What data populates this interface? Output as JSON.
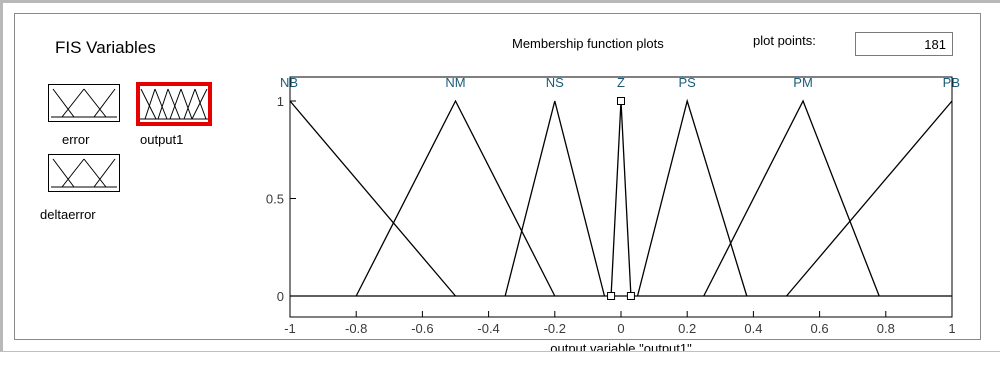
{
  "fis_variables": {
    "title": "FIS Variables",
    "inputs": [
      {
        "name": "error"
      },
      {
        "name": "deltaerror"
      }
    ],
    "outputs": [
      {
        "name": "output1",
        "selected": true
      }
    ],
    "selected_color": "#e60000"
  },
  "plot_panel": {
    "title": "Membership function plots",
    "plot_points_label": "plot points:",
    "plot_points_value": "181"
  },
  "chart_data": {
    "type": "line",
    "xlabel": "output variable \"output1\"",
    "xlim": [
      -1,
      1
    ],
    "ylim": [
      0,
      1
    ],
    "xticks": [
      "-1",
      "-0.8",
      "-0.6",
      "-0.4",
      "-0.2",
      "0",
      "0.2",
      "0.4",
      "0.6",
      "0.8",
      "1"
    ],
    "yticks": [
      "0",
      "0.5",
      "1"
    ],
    "series": [
      {
        "name": "NB",
        "x": [
          -1,
          -0.5
        ],
        "y": [
          1,
          0
        ]
      },
      {
        "name": "NM",
        "x": [
          -0.8,
          -0.5,
          -0.2
        ],
        "y": [
          0,
          1,
          0
        ]
      },
      {
        "name": "NS",
        "x": [
          -0.35,
          -0.2,
          -0.05
        ],
        "y": [
          0,
          1,
          0
        ]
      },
      {
        "name": "Z",
        "x": [
          -0.03,
          0,
          0.03
        ],
        "y": [
          0,
          1,
          0
        ],
        "markers": true
      },
      {
        "name": "PS",
        "x": [
          0.05,
          0.2,
          0.38
        ],
        "y": [
          0,
          1,
          0
        ]
      },
      {
        "name": "PM",
        "x": [
          0.25,
          0.55,
          0.78
        ],
        "y": [
          0,
          1,
          0
        ]
      },
      {
        "name": "PB",
        "x": [
          0.5,
          1
        ],
        "y": [
          0,
          1
        ]
      }
    ],
    "line_color": "#000000",
    "label_color": "#1a5d7a"
  }
}
